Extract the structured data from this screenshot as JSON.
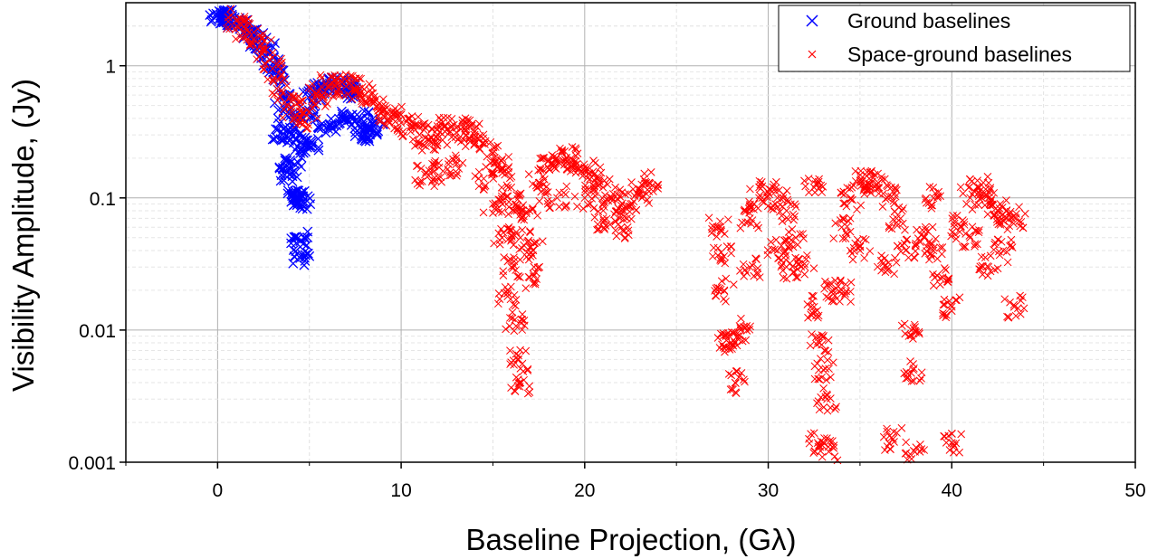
{
  "chart_data": {
    "type": "scatter",
    "title": "",
    "xlabel": "Baseline Projection, (Gλ)",
    "ylabel": "Visibility Amplitude, (Jy)",
    "xlim": [
      -5,
      50
    ],
    "ylim": [
      0.001,
      3
    ],
    "yscale": "log",
    "grid": true,
    "legend_position": "top-right",
    "xticks": [
      "0",
      "10",
      "20",
      "30",
      "40",
      "50"
    ],
    "yticks": [
      "0.001",
      "0.01",
      "0.1",
      "1"
    ],
    "series": [
      {
        "name": "Ground baselines",
        "color": "#0000ff",
        "marker": "x",
        "points": [
          [
            0,
            2.4
          ],
          [
            0.3,
            2.35
          ],
          [
            0.6,
            2.3
          ],
          [
            1.0,
            2.2
          ],
          [
            1.4,
            2.0
          ],
          [
            1.8,
            1.8
          ],
          [
            2.2,
            1.55
          ],
          [
            2.6,
            1.3
          ],
          [
            3.0,
            1.05
          ],
          [
            3.3,
            0.85
          ],
          [
            3.6,
            0.6
          ],
          [
            3.8,
            0.42
          ],
          [
            4.0,
            0.3
          ],
          [
            4.2,
            0.18
          ],
          [
            4.3,
            0.1
          ],
          [
            4.4,
            0.05
          ],
          [
            4.5,
            0.035
          ],
          [
            4.55,
            0.09
          ],
          [
            4.7,
            0.25
          ],
          [
            4.9,
            0.45
          ],
          [
            5.2,
            0.6
          ],
          [
            5.6,
            0.7
          ],
          [
            6.0,
            0.72
          ],
          [
            6.5,
            0.72
          ],
          [
            7.0,
            0.68
          ],
          [
            7.5,
            0.62
          ],
          [
            7.8,
            0.4
          ],
          [
            8.0,
            0.3
          ],
          [
            8.3,
            0.3
          ],
          [
            8.5,
            0.35
          ],
          [
            3.5,
            0.3
          ],
          [
            3.9,
            0.15
          ],
          [
            4.1,
            0.1
          ],
          [
            5.0,
            0.25
          ],
          [
            6.0,
            0.35
          ],
          [
            6.8,
            0.4
          ]
        ]
      },
      {
        "name": "Space-ground baselines",
        "color": "#ff0000",
        "marker": "x",
        "points": [
          [
            1.0,
            2.2
          ],
          [
            1.5,
            1.9
          ],
          [
            2.0,
            1.6
          ],
          [
            2.5,
            1.3
          ],
          [
            3.0,
            0.95
          ],
          [
            3.5,
            0.65
          ],
          [
            4.0,
            0.48
          ],
          [
            4.5,
            0.4
          ],
          [
            5.0,
            0.45
          ],
          [
            5.5,
            0.6
          ],
          [
            6.0,
            0.7
          ],
          [
            6.5,
            0.72
          ],
          [
            7.0,
            0.7
          ],
          [
            7.5,
            0.66
          ],
          [
            8.0,
            0.6
          ],
          [
            8.5,
            0.52
          ],
          [
            9.0,
            0.45
          ],
          [
            9.5,
            0.4
          ],
          [
            10.0,
            0.37
          ],
          [
            10.5,
            0.34
          ],
          [
            11.0,
            0.3
          ],
          [
            11.5,
            0.28
          ],
          [
            12.0,
            0.3
          ],
          [
            12.5,
            0.33
          ],
          [
            13.0,
            0.34
          ],
          [
            13.5,
            0.32
          ],
          [
            14.0,
            0.3
          ],
          [
            14.5,
            0.26
          ],
          [
            15.0,
            0.22
          ],
          [
            15.5,
            0.17
          ],
          [
            16.0,
            0.12
          ],
          [
            16.3,
            0.08
          ],
          [
            16.5,
            0.05
          ],
          [
            17.0,
            0.08
          ],
          [
            17.5,
            0.13
          ],
          [
            18.0,
            0.17
          ],
          [
            18.5,
            0.19
          ],
          [
            19.0,
            0.2
          ],
          [
            19.5,
            0.19
          ],
          [
            20.0,
            0.17
          ],
          [
            20.5,
            0.15
          ],
          [
            21.0,
            0.12
          ],
          [
            21.5,
            0.1
          ],
          [
            22.0,
            0.08
          ],
          [
            22.5,
            0.09
          ],
          [
            23.0,
            0.11
          ],
          [
            23.5,
            0.13
          ],
          [
            11.3,
            0.15
          ],
          [
            11.8,
            0.16
          ],
          [
            13.0,
            0.18
          ],
          [
            14.5,
            0.14
          ],
          [
            15.0,
            0.09
          ],
          [
            15.5,
            0.05
          ],
          [
            16.0,
            0.03
          ],
          [
            15.8,
            0.018
          ],
          [
            16.2,
            0.012
          ],
          [
            16.4,
            0.006
          ],
          [
            16.5,
            0.004
          ],
          [
            17.0,
            0.025
          ],
          [
            17.2,
            0.04
          ],
          [
            18.5,
            0.1
          ],
          [
            20.0,
            0.1
          ],
          [
            21.0,
            0.07
          ],
          [
            22.0,
            0.06
          ],
          [
            27.3,
            0.06
          ],
          [
            27.5,
            0.035
          ],
          [
            27.6,
            0.02
          ],
          [
            27.7,
            0.009
          ],
          [
            28.0,
            0.008
          ],
          [
            28.2,
            0.004
          ],
          [
            28.5,
            0.01
          ],
          [
            29.0,
            0.07
          ],
          [
            29.5,
            0.1
          ],
          [
            30.0,
            0.11
          ],
          [
            30.5,
            0.1
          ],
          [
            31.0,
            0.08
          ],
          [
            31.5,
            0.05
          ],
          [
            32.0,
            0.03
          ],
          [
            32.5,
            0.015
          ],
          [
            32.8,
            0.008
          ],
          [
            33.0,
            0.005
          ],
          [
            33.2,
            0.003
          ],
          [
            32.7,
            0.0014
          ],
          [
            33.3,
            0.0012
          ],
          [
            33.5,
            0.02
          ],
          [
            34.0,
            0.06
          ],
          [
            34.5,
            0.1
          ],
          [
            35.0,
            0.13
          ],
          [
            35.5,
            0.14
          ],
          [
            36.0,
            0.13
          ],
          [
            36.5,
            0.1
          ],
          [
            37.0,
            0.07
          ],
          [
            37.5,
            0.04
          ],
          [
            37.8,
            0.01
          ],
          [
            37.9,
            0.005
          ],
          [
            38.0,
            0.0012
          ],
          [
            36.8,
            0.0015
          ],
          [
            38.5,
            0.05
          ],
          [
            39.0,
            0.04
          ],
          [
            39.5,
            0.025
          ],
          [
            40.0,
            0.015
          ],
          [
            40.0,
            0.0014
          ],
          [
            40.5,
            0.06
          ],
          [
            41.0,
            0.1
          ],
          [
            41.5,
            0.12
          ],
          [
            42.0,
            0.1
          ],
          [
            42.5,
            0.08
          ],
          [
            43.0,
            0.07
          ],
          [
            43.5,
            0.07
          ],
          [
            43.4,
            0.015
          ],
          [
            42.8,
            0.04
          ],
          [
            31.0,
            0.03
          ],
          [
            32.5,
            0.12
          ],
          [
            29.0,
            0.03
          ],
          [
            30.5,
            0.04
          ],
          [
            34.0,
            0.02
          ],
          [
            35.0,
            0.04
          ],
          [
            36.5,
            0.03
          ],
          [
            39.0,
            0.1
          ],
          [
            41.0,
            0.05
          ],
          [
            42.0,
            0.03
          ]
        ]
      }
    ]
  }
}
